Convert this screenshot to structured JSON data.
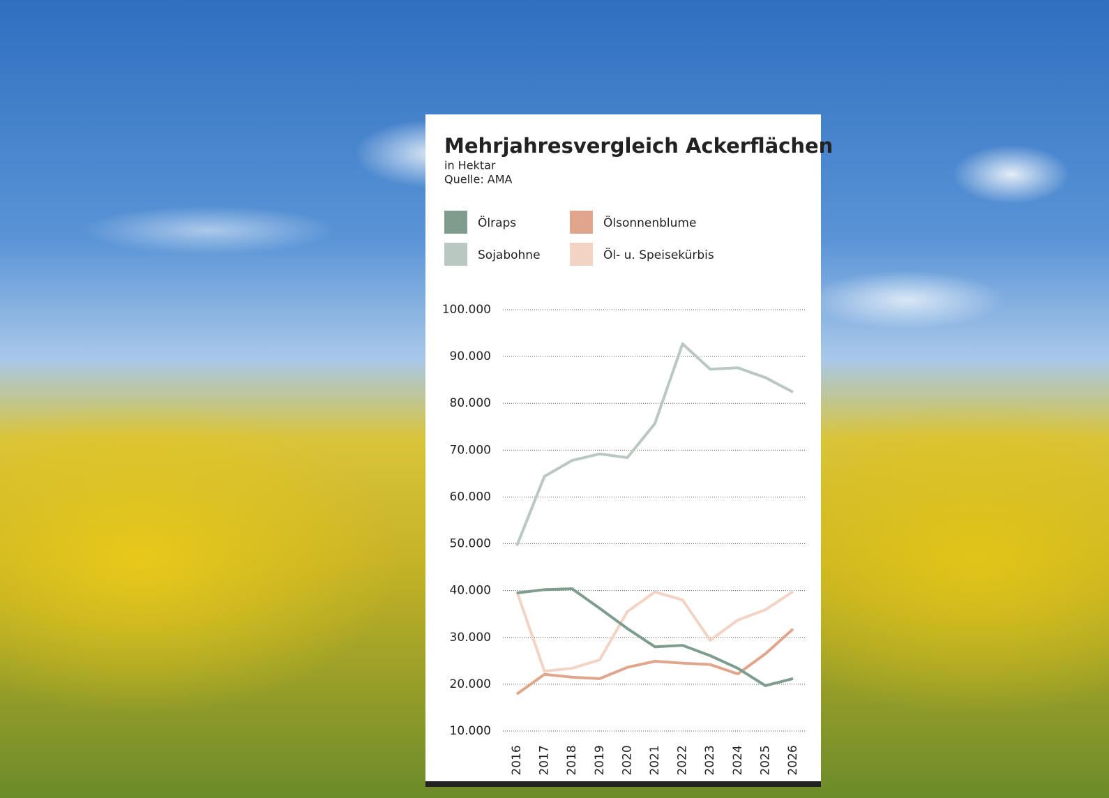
{
  "chart_data": {
    "type": "line",
    "title": "Mehrjahresvergleich Ackerflächen",
    "subtitle": "in Hektar",
    "source": "Quelle: AMA",
    "categories": [
      "2016",
      "2017",
      "2018",
      "2019",
      "2020",
      "2021",
      "2022",
      "2023",
      "2024",
      "2025",
      "2026"
    ],
    "series": [
      {
        "name": "Ölraps",
        "color": "#7e9d8f",
        "values": [
          39500,
          40200,
          40400,
          36200,
          31900,
          28000,
          28300,
          26100,
          23400,
          19700,
          21200
        ]
      },
      {
        "name": "Sojabohne",
        "color": "#b9c8c0",
        "values": [
          49600,
          64400,
          67800,
          69200,
          68400,
          75700,
          92700,
          87300,
          87600,
          85500,
          82400
        ]
      },
      {
        "name": "Ölsonnenblume",
        "color": "#e0a68c",
        "values": [
          17900,
          22100,
          21500,
          21200,
          23600,
          24900,
          24500,
          24200,
          22200,
          26500,
          31800
        ]
      },
      {
        "name": "Öl- u. Speisekürbis",
        "color": "#f2d3c4",
        "values": [
          39800,
          22800,
          23400,
          25200,
          35500,
          39700,
          38000,
          29400,
          33700,
          35900,
          39800
        ]
      }
    ],
    "ylim": [
      10000,
      100000
    ],
    "yticks": [
      {
        "value": 10000,
        "label": "10.000"
      },
      {
        "value": 20000,
        "label": "20.000"
      },
      {
        "value": 30000,
        "label": "30.000"
      },
      {
        "value": 40000,
        "label": "40.000"
      },
      {
        "value": 50000,
        "label": "50.000"
      },
      {
        "value": 60000,
        "label": "60.000"
      },
      {
        "value": 70000,
        "label": "70.000"
      },
      {
        "value": 80000,
        "label": "80.000"
      },
      {
        "value": 90000,
        "label": "90.000"
      },
      {
        "value": 100000,
        "label": "100.000"
      }
    ],
    "grid": true
  }
}
